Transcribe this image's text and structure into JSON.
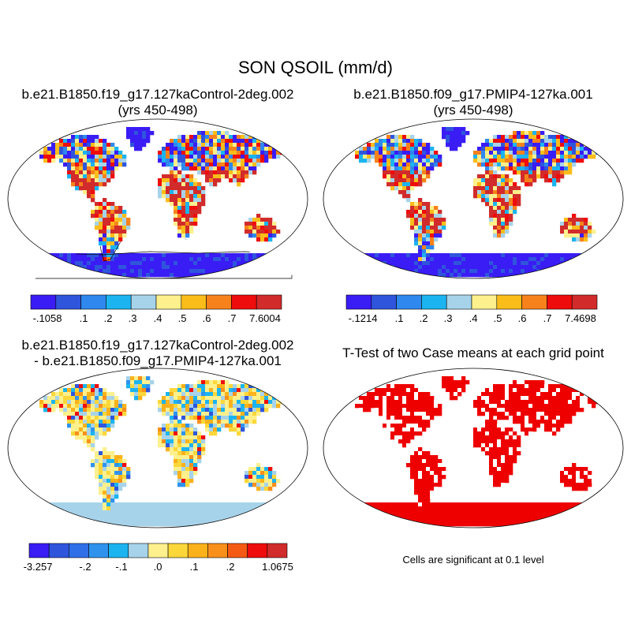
{
  "title": "SON QSOIL (mm/d)",
  "panels": [
    {
      "id": "case1",
      "title_line1": "b.e21.B1850.f19_g17.127kaControl-2deg.002",
      "title_line2": "(yrs 450-498)"
    },
    {
      "id": "case2",
      "title_line1": "b.e21.B1850.f09_g17.PMIP4-127ka.001",
      "title_line2": "(yrs 450-498)"
    },
    {
      "id": "diff",
      "title_line1": "b.e21.B1850.f19_g17.127kaControl-2deg.002",
      "title_line2": "- b.e21.B1850.f09_g17.PMIP4-127ka.001"
    },
    {
      "id": "ttest",
      "title_line1": "T-Test of two Case means at each grid point",
      "title_line2": ""
    }
  ],
  "significance_note": "Cells are significant at 0.1 level",
  "colorbars": {
    "case1": {
      "colors": [
        "#3a1cf5",
        "#2f55dd",
        "#2f88ee",
        "#1bb4f0",
        "#a7d3ea",
        "#fdf08d",
        "#fbbd1a",
        "#f7821b",
        "#ef0c0c",
        "#d12b2b"
      ],
      "labels": [
        "-.1058",
        ".1",
        ".2",
        ".3",
        ".4",
        ".5",
        ".6",
        ".7",
        "7.6004"
      ]
    },
    "case2": {
      "colors": [
        "#3a1cf5",
        "#2f55dd",
        "#2f88ee",
        "#1bb4f0",
        "#a7d3ea",
        "#fdf08d",
        "#fbbd1a",
        "#f7821b",
        "#ef0c0c",
        "#d12b2b"
      ],
      "labels": [
        "-.1214",
        ".1",
        ".2",
        ".3",
        ".4",
        ".5",
        ".6",
        ".7",
        "7.4698"
      ]
    },
    "diff": {
      "colors": [
        "#3a1cf5",
        "#2f55dd",
        "#2f70e8",
        "#2f93ee",
        "#1bb4f0",
        "#a7d3ea",
        "#fdf08d",
        "#fcd73a",
        "#fbb21a",
        "#f8901b",
        "#f55a14",
        "#ef0c0c",
        "#d12b2b"
      ],
      "labels": [
        "-3.257",
        "-.2",
        "-.1",
        ".0",
        ".1",
        ".2",
        "1.0675"
      ]
    }
  },
  "colors": {
    "significant": "#ee0000",
    "land_outline": "#000000",
    "frame": "#000000"
  }
}
